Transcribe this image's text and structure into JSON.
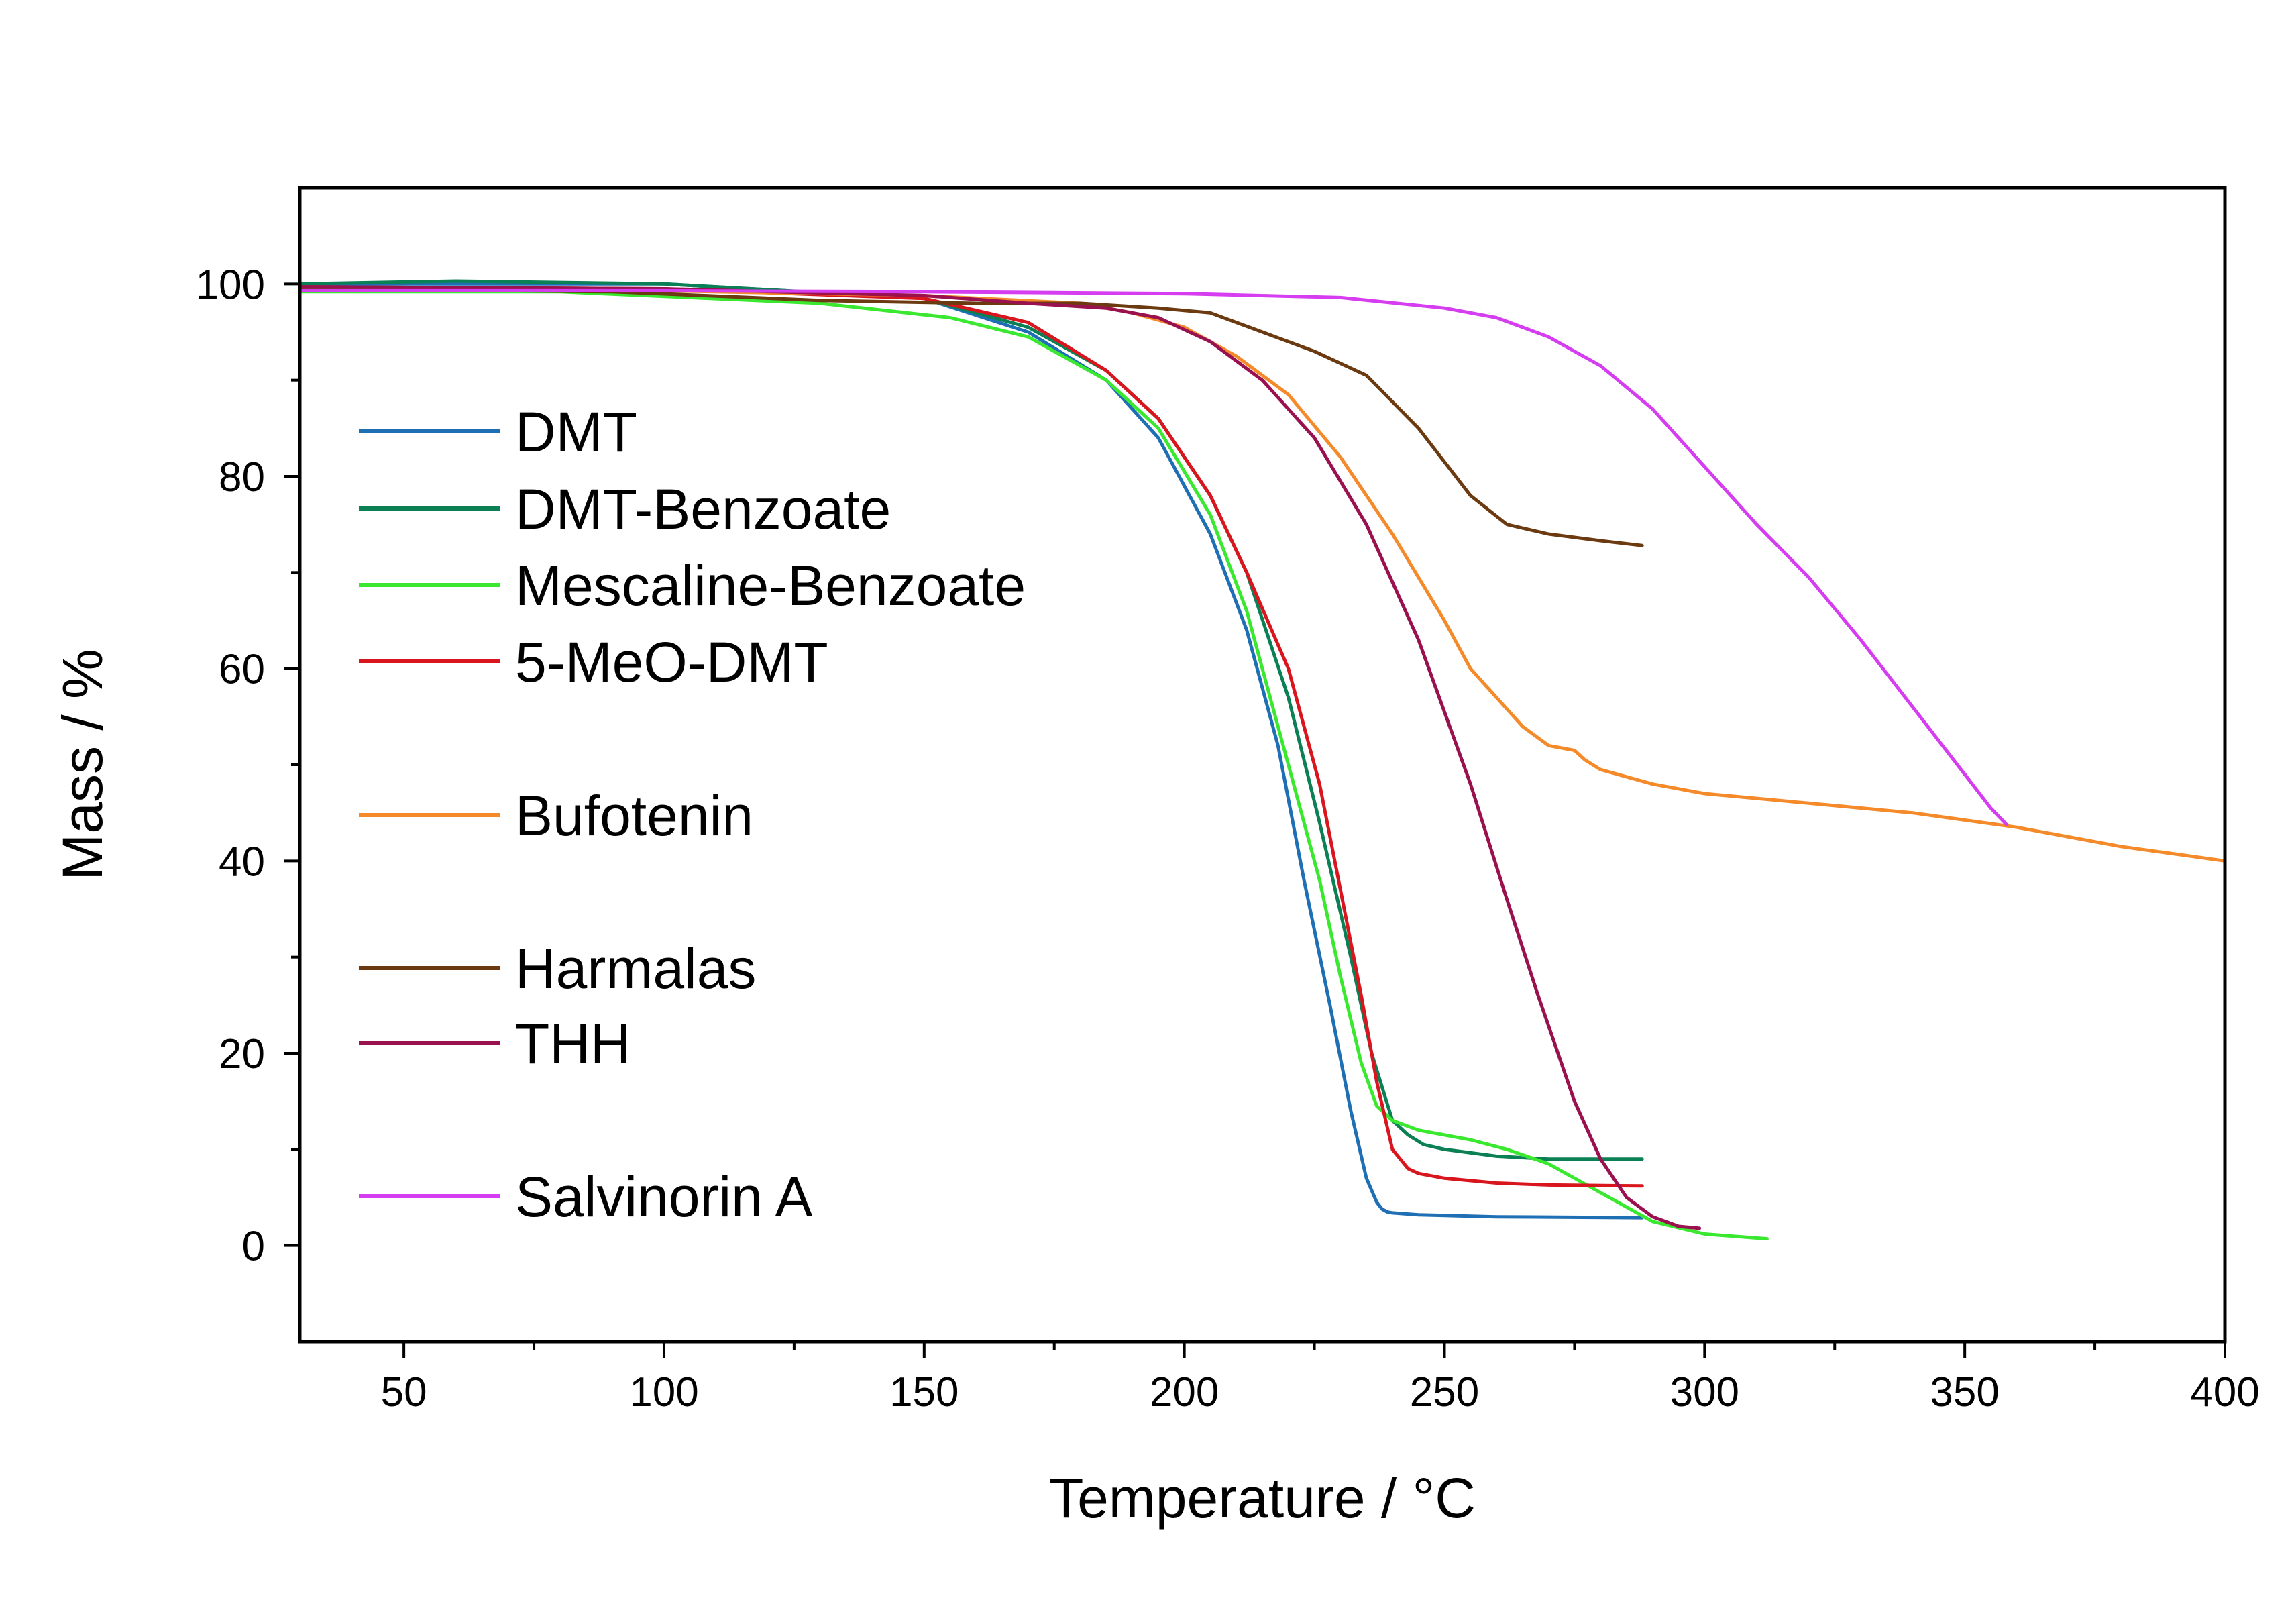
{
  "chart_data": {
    "type": "line",
    "title": "",
    "xlabel": "Temperature / °C",
    "ylabel": "Mass / %",
    "xlim": [
      30,
      400
    ],
    "ylim": [
      -10,
      110
    ],
    "xticks": [
      50,
      100,
      150,
      200,
      250,
      300,
      350,
      400
    ],
    "yticks": [
      0,
      20,
      40,
      60,
      80,
      100
    ],
    "x_tick_labels": [
      "50",
      "100",
      "150",
      "200",
      "250",
      "300",
      "350",
      "400"
    ],
    "y_tick_labels": [
      "0",
      "20",
      "40",
      "60",
      "80",
      "100"
    ],
    "grid": false,
    "legend_position": "left",
    "series": [
      {
        "name": "DMT",
        "color": "#1f6fb4",
        "x": [
          30,
          100,
          150,
          170,
          185,
          195,
          205,
          212,
          218,
          223,
          228,
          232,
          235,
          237,
          238,
          239,
          240,
          245,
          260,
          288
        ],
        "y": [
          100,
          100,
          98.5,
          95,
          90,
          84,
          74,
          64,
          52,
          38,
          25,
          14,
          7,
          4.5,
          3.8,
          3.5,
          3.4,
          3.2,
          3,
          2.9
        ]
      },
      {
        "name": "DMT-Benzoate",
        "color": "#0b8055",
        "x": [
          30,
          60,
          100,
          150,
          170,
          185,
          195,
          205,
          212,
          220,
          226,
          232,
          236,
          240,
          243,
          246,
          250,
          260,
          270,
          288
        ],
        "y": [
          100,
          100.3,
          100,
          98.5,
          95.5,
          91,
          86,
          78,
          70,
          57,
          44,
          30,
          20,
          13,
          11.5,
          10.5,
          10,
          9.3,
          9,
          9
        ]
      },
      {
        "name": "Mescaline-Benzoate",
        "color": "#39e82f",
        "x": [
          30,
          80,
          130,
          155,
          170,
          185,
          195,
          205,
          212,
          220,
          226,
          230,
          234,
          237,
          240,
          245,
          255,
          262,
          270,
          280,
          290,
          300,
          312
        ],
        "y": [
          99.2,
          99.2,
          98,
          96.5,
          94.5,
          90,
          85,
          76,
          66,
          50,
          38,
          28,
          19,
          14.5,
          13,
          12,
          11,
          10,
          8.5,
          5.5,
          2.5,
          1.2,
          0.7
        ]
      },
      {
        "name": "5-MeO-DMT",
        "color": "#d9161e",
        "x": [
          30,
          100,
          150,
          170,
          185,
          195,
          205,
          212,
          220,
          226,
          230,
          234,
          237,
          240,
          243,
          245,
          250,
          260,
          270,
          288
        ],
        "y": [
          99.7,
          99.5,
          98.5,
          96,
          91,
          86,
          78,
          70,
          60,
          48,
          37,
          26,
          17,
          10,
          8,
          7.5,
          7,
          6.5,
          6.3,
          6.2
        ]
      },
      {
        "name": "Bufotenin",
        "color": "#f48a2a",
        "x": [
          30,
          100,
          150,
          180,
          190,
          200,
          210,
          220,
          230,
          240,
          250,
          255,
          260,
          265,
          270,
          275,
          277,
          280,
          290,
          300,
          320,
          340,
          360,
          380,
          400
        ],
        "y": [
          99.3,
          99.3,
          98.8,
          98,
          97,
          95.5,
          92.5,
          88.5,
          82,
          74,
          65,
          60,
          57,
          54,
          52,
          51.5,
          50.5,
          49.5,
          48,
          47,
          46,
          45,
          43.5,
          41.5,
          40
        ]
      },
      {
        "name": "Harmalas",
        "color": "#6b3a10",
        "x": [
          30,
          90,
          130,
          160,
          180,
          195,
          205,
          215,
          225,
          235,
          245,
          255,
          262,
          270,
          280,
          288
        ],
        "y": [
          99.5,
          99.2,
          98.3,
          98,
          98,
          97.5,
          97,
          95,
          93,
          90.5,
          85,
          78,
          75,
          74,
          73.3,
          72.8
        ]
      },
      {
        "name": "THH",
        "color": "#9a1150",
        "x": [
          30,
          100,
          150,
          170,
          185,
          195,
          205,
          215,
          225,
          235,
          245,
          255,
          262,
          268,
          275,
          280,
          285,
          290,
          295,
          299
        ],
        "y": [
          99.7,
          99.5,
          98.8,
          98,
          97.5,
          96.5,
          94,
          90,
          84,
          75,
          63,
          48,
          36,
          26,
          15,
          9,
          5,
          3,
          2,
          1.8
        ]
      },
      {
        "name": "Salvinorin A",
        "color": "#d63cf0",
        "x": [
          30,
          100,
          150,
          200,
          230,
          250,
          260,
          270,
          280,
          290,
          300,
          310,
          320,
          330,
          340,
          350,
          355,
          358
        ],
        "y": [
          99.3,
          99.3,
          99.2,
          99,
          98.6,
          97.5,
          96.5,
          94.5,
          91.5,
          87,
          81,
          75,
          69.5,
          63,
          56,
          49,
          45.5,
          43.8
        ]
      }
    ]
  }
}
